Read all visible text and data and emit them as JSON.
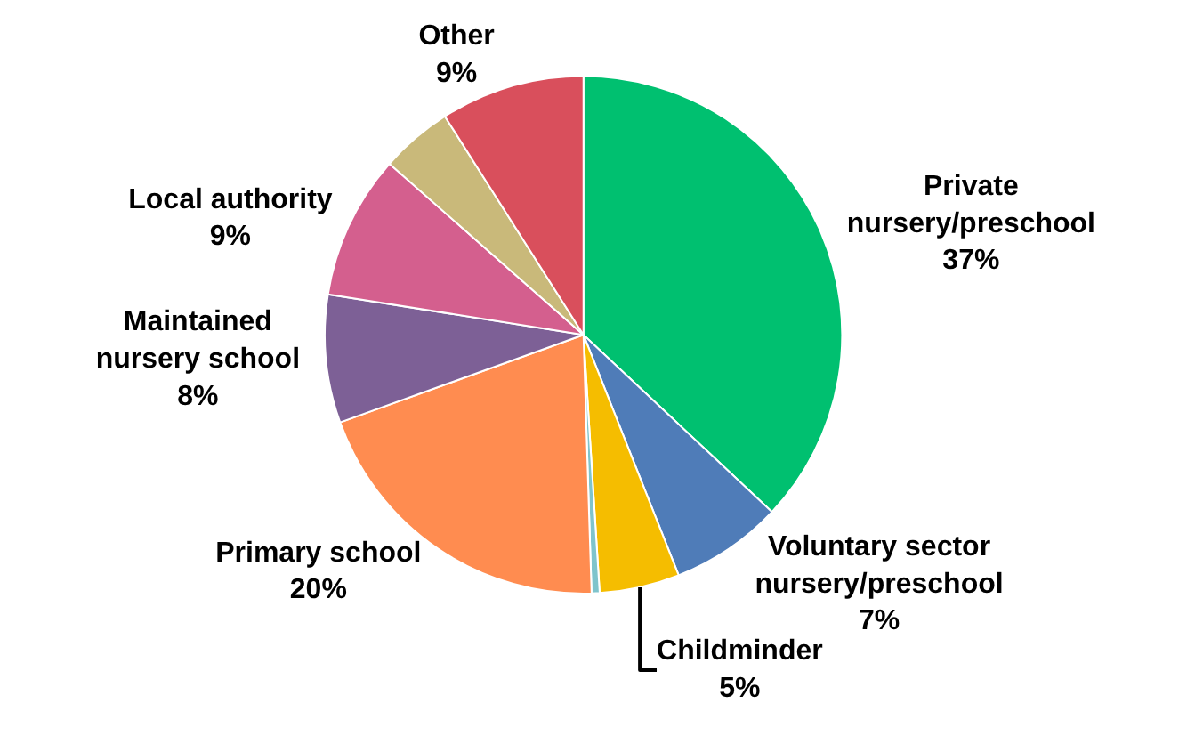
{
  "chart_data": {
    "type": "pie",
    "categories": [
      "Private\nnursery/preschool",
      "Voluntary sector\nnursery/preschool",
      "Childminder",
      null,
      "Primary school",
      "Maintained\nnursery school",
      "Local authority",
      null,
      "Other"
    ],
    "values": [
      37,
      7,
      5,
      0.5,
      20,
      8,
      9,
      4.5,
      9
    ],
    "value_labels": [
      "37%",
      "7%",
      "5%",
      null,
      "20%",
      "8%",
      "9%",
      null,
      "9%"
    ],
    "colors": [
      "#00c070",
      "#4f7cb8",
      "#f5bd00",
      "#7fc4cc",
      "#ff8c50",
      "#7d6096",
      "#d45f8e",
      "#c9b97a",
      "#d94f5c"
    ],
    "legend": false
  }
}
